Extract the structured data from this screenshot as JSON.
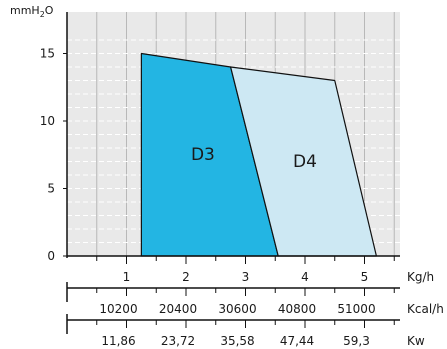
{
  "chart_data": {
    "type": "area",
    "ylabel": {
      "prefix": "mmH",
      "sub": "2",
      "suffix": "O"
    },
    "ylim": [
      0,
      17
    ],
    "xlim": [
      0,
      5.6
    ],
    "y_ticks": [
      0,
      5,
      10,
      15
    ],
    "grid": true,
    "series": [
      {
        "name": "D3",
        "fill": "#23b5e3",
        "points": [
          [
            1.25,
            0
          ],
          [
            1.25,
            15
          ],
          [
            2.75,
            14
          ],
          [
            3.55,
            0
          ]
        ]
      },
      {
        "name": "D4",
        "fill": "#cde8f3",
        "points": [
          [
            2.75,
            14
          ],
          [
            4.5,
            13
          ],
          [
            5.2,
            0
          ],
          [
            3.55,
            0
          ]
        ]
      }
    ],
    "x_axes": [
      {
        "unit": "Kg/h",
        "ticks": [
          {
            "x": 1,
            "label": "1"
          },
          {
            "x": 2,
            "label": "2"
          },
          {
            "x": 3,
            "label": "3"
          },
          {
            "x": 4,
            "label": "4"
          },
          {
            "x": 5,
            "label": "5"
          }
        ]
      },
      {
        "unit": "Kcal/h",
        "ticks": [
          {
            "x": 1,
            "label": "10200"
          },
          {
            "x": 2,
            "label": "20400"
          },
          {
            "x": 3,
            "label": "30600"
          },
          {
            "x": 4,
            "label": "40800"
          },
          {
            "x": 5,
            "label": "51000"
          }
        ]
      },
      {
        "unit": "Kw",
        "ticks": [
          {
            "x": 1,
            "label": "11,86"
          },
          {
            "x": 2,
            "label": "23,72"
          },
          {
            "x": 3,
            "label": "35,58"
          },
          {
            "x": 4,
            "label": "47,44"
          },
          {
            "x": 5,
            "label": "59,3"
          }
        ]
      }
    ],
    "colors": {
      "grid": "#b8b8b8",
      "plot_bg": "#e9e9e9",
      "axis": "#111111"
    }
  }
}
